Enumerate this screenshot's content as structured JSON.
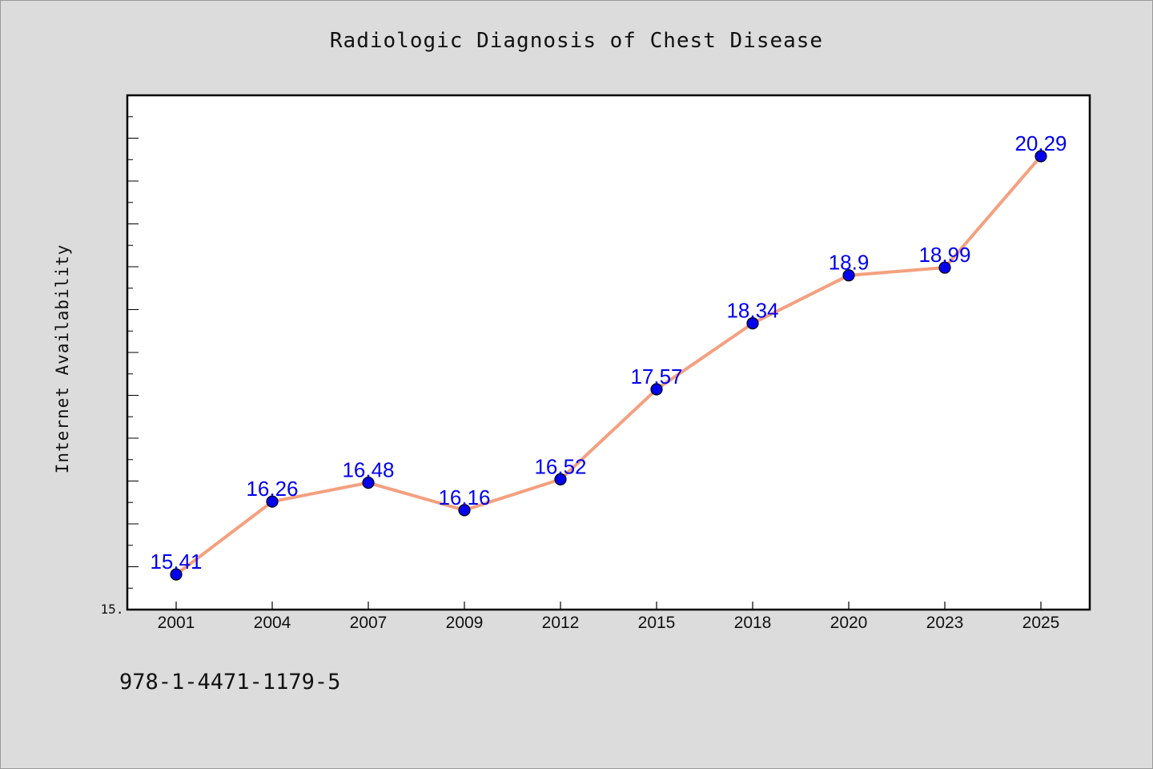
{
  "chart_data": {
    "type": "line",
    "title": "Radiologic Diagnosis of Chest Disease",
    "xlabel": "",
    "ylabel": "Internet Availability",
    "categories": [
      "2001",
      "2004",
      "2007",
      "2009",
      "2012",
      "2015",
      "2018",
      "2020",
      "2023",
      "2025"
    ],
    "series": [
      {
        "values": [
          15.41,
          16.26,
          16.48,
          16.16,
          16.52,
          17.57,
          18.34,
          18.9,
          18.99,
          20.29
        ],
        "labels": [
          "15.41",
          "16.26",
          "16.48",
          "16.16",
          "16.52",
          "17.57",
          "18.34",
          "18.9",
          "18.99",
          "20.29"
        ]
      }
    ],
    "ylim": [
      15.0,
      21.0
    ],
    "y_tick_label": "15.",
    "grid": false,
    "line_color": "#f4a07f",
    "marker_color": "#0000ee",
    "data_label_color": "#0000ee"
  },
  "footnote": "978-1-4471-1179-5"
}
